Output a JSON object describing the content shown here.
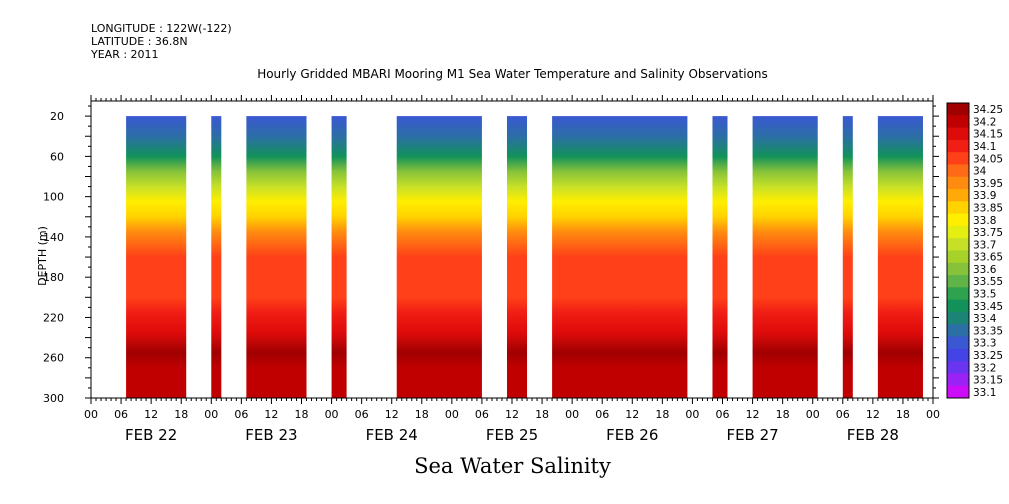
{
  "meta": {
    "longitude": "LONGITUDE : 122W(-122)",
    "latitude": "LATITUDE : 36.8N",
    "year": "YEAR : 2011"
  },
  "chart_data": {
    "type": "heatmap",
    "title": "Hourly Gridded MBARI Mooring M1 Sea Water Temperature and Salinity Observations",
    "xlabel": "Sea Water Salinity",
    "ylabel": "DEPTH (m)",
    "ylim": [
      300,
      5
    ],
    "y_ticks": [
      20,
      60,
      100,
      140,
      180,
      220,
      260,
      300
    ],
    "x_range_hours": [
      0,
      168
    ],
    "x_hour_ticks": [
      "00",
      "06",
      "12",
      "18",
      "00",
      "06",
      "12",
      "18",
      "00",
      "06",
      "12",
      "18",
      "00",
      "06",
      "12",
      "18",
      "00",
      "06",
      "12",
      "18",
      "00",
      "06",
      "12",
      "18",
      "00",
      "06",
      "12",
      "18",
      "00"
    ],
    "x_day_labels": [
      "FEB 22",
      "FEB 23",
      "FEB 24",
      "FEB 25",
      "FEB 26",
      "FEB 27",
      "FEB 28"
    ],
    "data_segments_hours": [
      [
        7,
        19
      ],
      [
        24,
        26
      ],
      [
        31,
        43
      ],
      [
        48,
        51
      ],
      [
        61,
        78
      ],
      [
        83,
        87
      ],
      [
        92,
        119
      ],
      [
        124,
        127
      ],
      [
        132,
        145
      ],
      [
        150,
        152
      ],
      [
        157,
        166
      ]
    ],
    "depth_salinity_profile": [
      {
        "depth": 20,
        "salinity": 33.3
      },
      {
        "depth": 40,
        "salinity": 33.35
      },
      {
        "depth": 60,
        "salinity": 33.45
      },
      {
        "depth": 75,
        "salinity": 33.6
      },
      {
        "depth": 90,
        "salinity": 33.7
      },
      {
        "depth": 105,
        "salinity": 33.8
      },
      {
        "depth": 120,
        "salinity": 33.85
      },
      {
        "depth": 135,
        "salinity": 33.95
      },
      {
        "depth": 160,
        "salinity": 34.05
      },
      {
        "depth": 200,
        "salinity": 34.05
      },
      {
        "depth": 215,
        "salinity": 34.1
      },
      {
        "depth": 235,
        "salinity": 34.15
      },
      {
        "depth": 255,
        "salinity": 34.25
      },
      {
        "depth": 270,
        "salinity": 34.2
      },
      {
        "depth": 300,
        "salinity": 34.2
      }
    ],
    "colorbar": {
      "levels": [
        "34.25",
        "34.2",
        "34.15",
        "34.1",
        "34.05",
        "34",
        "33.95",
        "33.9",
        "33.85",
        "33.8",
        "33.75",
        "33.7",
        "33.65",
        "33.6",
        "33.55",
        "33.5",
        "33.45",
        "33.4",
        "33.35",
        "33.3",
        "33.25",
        "33.2",
        "33.15",
        "33.1"
      ],
      "colors": [
        "#a00000",
        "#c00000",
        "#de0b0b",
        "#f01e14",
        "#ff4018",
        "#ff6a18",
        "#ff8c10",
        "#ffaa08",
        "#ffd200",
        "#ffee00",
        "#e4ee10",
        "#c6e028",
        "#a6d22a",
        "#86c23a",
        "#5fb347",
        "#2ea24e",
        "#12925a",
        "#1c8474",
        "#2c6ea6",
        "#3a58d2",
        "#4444e6",
        "#6a34f0",
        "#9a22f4",
        "#cc0cf8"
      ]
    }
  }
}
